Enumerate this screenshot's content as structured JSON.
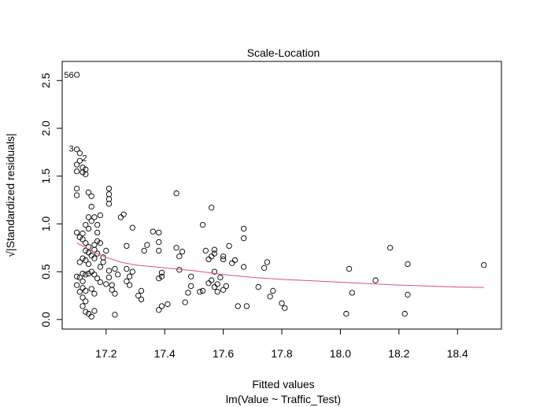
{
  "chart_data": {
    "type": "scatter",
    "title": "Scale-Location",
    "xlabel": "Fitted values",
    "ylabel": "√|Standardized residuals|",
    "subtitle": "lm(Value ~ Traffic_Test)",
    "xlim": [
      17.05,
      18.55
    ],
    "ylim": [
      -0.1,
      2.7
    ],
    "x_ticks": [
      "17.2",
      "17.4",
      "17.6",
      "17.8",
      "18.0",
      "18.2",
      "18.4"
    ],
    "y_ticks": [
      "0.0",
      "0.5",
      "1.0",
      "1.5",
      "2.0",
      "2.5"
    ],
    "grid": false,
    "point_marker": "open-circle",
    "smoother_color": "#DF536B",
    "outlier_labels": [
      {
        "label": "56",
        "x": 17.1,
        "y": 2.56
      },
      {
        "label": "3",
        "x": 17.1,
        "y": 1.78
      },
      {
        "label": "2",
        "x": 17.11,
        "y": 1.74
      }
    ],
    "points": [
      [
        17.1,
        2.56
      ],
      [
        17.1,
        1.78
      ],
      [
        17.11,
        1.74
      ],
      [
        17.1,
        1.62
      ],
      [
        17.11,
        1.66
      ],
      [
        17.12,
        1.59
      ],
      [
        17.13,
        1.57
      ],
      [
        17.13,
        1.52
      ],
      [
        17.1,
        1.55
      ],
      [
        17.12,
        1.54
      ],
      [
        17.1,
        1.37
      ],
      [
        17.1,
        1.3
      ],
      [
        17.14,
        1.33
      ],
      [
        17.15,
        1.29
      ],
      [
        17.15,
        1.18
      ],
      [
        17.14,
        1.07
      ],
      [
        17.15,
        1.03
      ],
      [
        17.13,
        0.99
      ],
      [
        17.14,
        0.95
      ],
      [
        17.12,
        0.9
      ],
      [
        17.1,
        0.91
      ],
      [
        17.11,
        0.86
      ],
      [
        17.12,
        0.84
      ],
      [
        17.13,
        0.8
      ],
      [
        17.14,
        0.76
      ],
      [
        17.13,
        0.72
      ],
      [
        17.14,
        0.7
      ],
      [
        17.12,
        0.64
      ],
      [
        17.11,
        0.6
      ],
      [
        17.13,
        0.62
      ],
      [
        17.14,
        0.58
      ],
      [
        17.15,
        0.67
      ],
      [
        17.16,
        0.64
      ],
      [
        17.17,
        0.69
      ],
      [
        17.16,
        0.73
      ],
      [
        17.17,
        0.82
      ],
      [
        17.18,
        0.8
      ],
      [
        17.17,
        0.91
      ],
      [
        17.16,
        1.07
      ],
      [
        17.18,
        1.09
      ],
      [
        17.17,
        0.99
      ],
      [
        17.16,
        0.78
      ],
      [
        17.12,
        0.48
      ],
      [
        17.11,
        0.44
      ],
      [
        17.12,
        0.4
      ],
      [
        17.1,
        0.36
      ],
      [
        17.12,
        0.33
      ],
      [
        17.11,
        0.29
      ],
      [
        17.13,
        0.3
      ],
      [
        17.12,
        0.23
      ],
      [
        17.13,
        0.19
      ],
      [
        17.12,
        0.14
      ],
      [
        17.15,
        0.32
      ],
      [
        17.16,
        0.27
      ],
      [
        17.14,
        0.48
      ],
      [
        17.15,
        0.5
      ],
      [
        17.13,
        0.47
      ],
      [
        17.1,
        0.45
      ],
      [
        17.14,
        0.06
      ],
      [
        17.15,
        0.03
      ],
      [
        17.16,
        0.09
      ],
      [
        17.13,
        0.08
      ],
      [
        17.16,
        0.47
      ],
      [
        17.17,
        0.43
      ],
      [
        17.18,
        0.39
      ],
      [
        17.18,
        0.55
      ],
      [
        17.19,
        0.6
      ],
      [
        17.19,
        0.65
      ],
      [
        17.2,
        0.37
      ],
      [
        17.2,
        0.72
      ],
      [
        17.21,
        0.51
      ],
      [
        17.21,
        0.44
      ],
      [
        17.22,
        0.36
      ],
      [
        17.22,
        0.31
      ],
      [
        17.23,
        0.27
      ],
      [
        17.21,
        1.37
      ],
      [
        17.21,
        1.31
      ],
      [
        17.21,
        1.26
      ],
      [
        17.21,
        1.21
      ],
      [
        17.23,
        0.05
      ],
      [
        17.23,
        0.53
      ],
      [
        17.24,
        0.47
      ],
      [
        17.25,
        1.07
      ],
      [
        17.26,
        1.1
      ],
      [
        17.27,
        0.53
      ],
      [
        17.27,
        0.4
      ],
      [
        17.28,
        0.36
      ],
      [
        17.28,
        0.45
      ],
      [
        17.29,
        0.5
      ],
      [
        17.27,
        0.77
      ],
      [
        17.29,
        0.96
      ],
      [
        17.31,
        0.25
      ],
      [
        17.32,
        0.3
      ],
      [
        17.32,
        0.21
      ],
      [
        17.33,
        0.72
      ],
      [
        17.34,
        0.78
      ],
      [
        17.36,
        0.92
      ],
      [
        17.38,
        0.91
      ],
      [
        17.38,
        0.43
      ],
      [
        17.39,
        0.45
      ],
      [
        17.39,
        0.49
      ],
      [
        17.38,
        0.1
      ],
      [
        17.39,
        0.14
      ],
      [
        17.41,
        0.16
      ],
      [
        17.38,
        0.72
      ],
      [
        17.38,
        0.81
      ],
      [
        17.44,
        1.32
      ],
      [
        17.45,
        0.66
      ],
      [
        17.46,
        0.71
      ],
      [
        17.44,
        0.75
      ],
      [
        17.45,
        0.52
      ],
      [
        17.47,
        0.18
      ],
      [
        17.48,
        0.28
      ],
      [
        17.49,
        0.35
      ],
      [
        17.49,
        0.45
      ],
      [
        17.52,
        0.29
      ],
      [
        17.53,
        0.3
      ],
      [
        17.53,
        0.99
      ],
      [
        17.54,
        0.72
      ],
      [
        17.55,
        0.63
      ],
      [
        17.56,
        0.66
      ],
      [
        17.57,
        0.69
      ],
      [
        17.57,
        0.73
      ],
      [
        17.56,
        1.17
      ],
      [
        17.55,
        0.38
      ],
      [
        17.56,
        0.41
      ],
      [
        17.57,
        0.34
      ],
      [
        17.58,
        0.29
      ],
      [
        17.58,
        0.37
      ],
      [
        17.57,
        0.5
      ],
      [
        17.59,
        0.44
      ],
      [
        17.6,
        0.66
      ],
      [
        17.6,
        0.63
      ],
      [
        17.62,
        0.77
      ],
      [
        17.6,
        0.31
      ],
      [
        17.61,
        0.35
      ],
      [
        17.63,
        0.59
      ],
      [
        17.64,
        0.62
      ],
      [
        17.65,
        0.14
      ],
      [
        17.67,
        0.95
      ],
      [
        17.67,
        0.85
      ],
      [
        17.67,
        0.55
      ],
      [
        17.68,
        0.14
      ],
      [
        17.72,
        0.34
      ],
      [
        17.74,
        0.54
      ],
      [
        17.75,
        0.6
      ],
      [
        17.77,
        0.3
      ],
      [
        17.76,
        0.24
      ],
      [
        17.8,
        0.17
      ],
      [
        17.81,
        0.12
      ],
      [
        18.02,
        0.06
      ],
      [
        18.03,
        0.53
      ],
      [
        18.04,
        0.28
      ],
      [
        18.12,
        0.41
      ],
      [
        18.17,
        0.75
      ],
      [
        18.22,
        0.06
      ],
      [
        18.23,
        0.58
      ],
      [
        18.23,
        0.26
      ],
      [
        18.49,
        0.57
      ]
    ],
    "smoother": [
      [
        17.1,
        0.8
      ],
      [
        17.15,
        0.72
      ],
      [
        17.2,
        0.65
      ],
      [
        17.25,
        0.6
      ],
      [
        17.3,
        0.57
      ],
      [
        17.4,
        0.54
      ],
      [
        17.5,
        0.51
      ],
      [
        17.6,
        0.47
      ],
      [
        17.7,
        0.44
      ],
      [
        17.8,
        0.42
      ],
      [
        17.9,
        0.405
      ],
      [
        18.0,
        0.39
      ],
      [
        18.1,
        0.375
      ],
      [
        18.2,
        0.36
      ],
      [
        18.3,
        0.35
      ],
      [
        18.4,
        0.34
      ],
      [
        18.49,
        0.335
      ]
    ]
  }
}
